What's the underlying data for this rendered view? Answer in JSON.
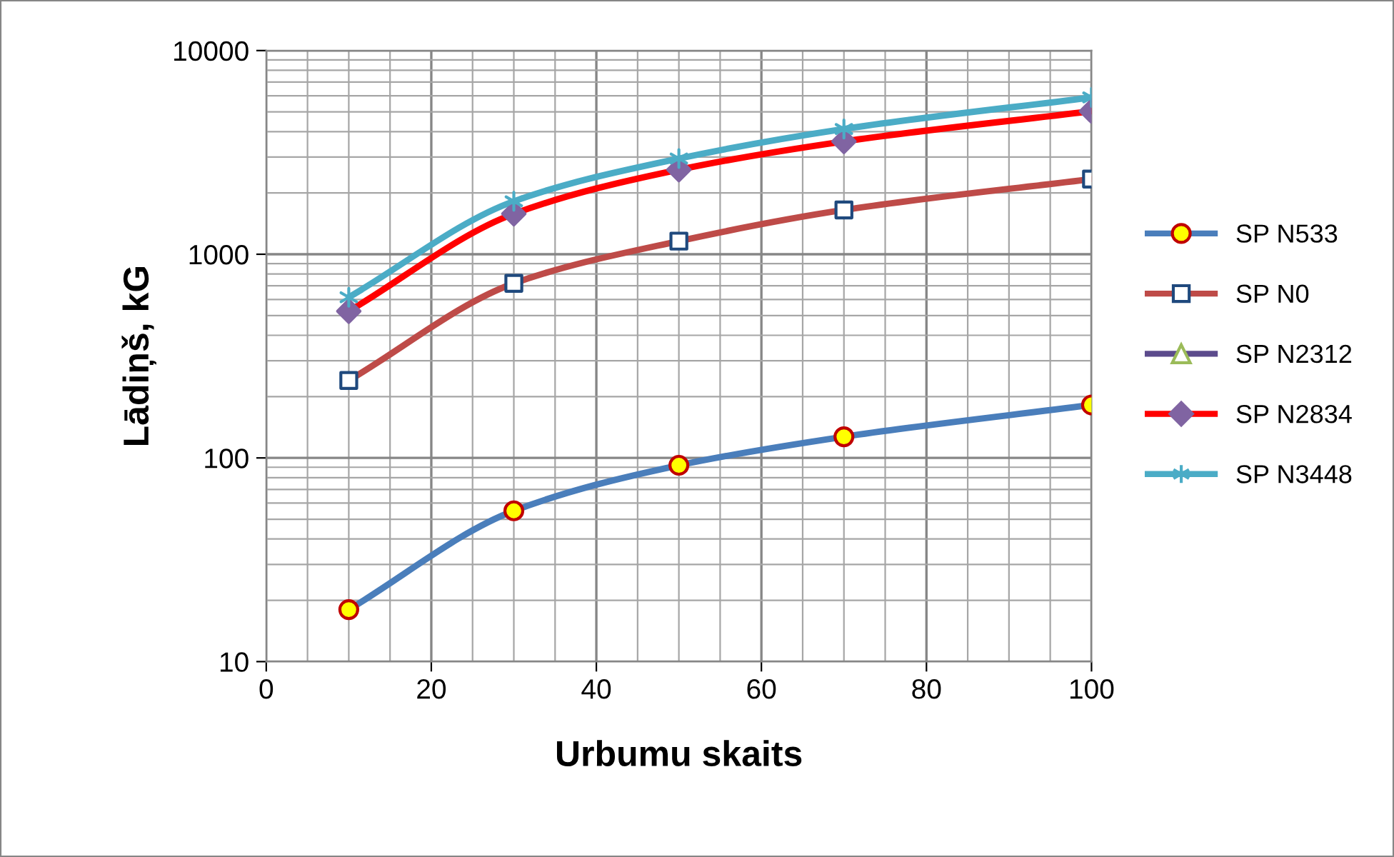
{
  "chart_data": {
    "type": "line",
    "xlabel": "Urbumu skaits",
    "ylabel": "Lādiņš, kG",
    "x": [
      10,
      30,
      50,
      70,
      100
    ],
    "series": [
      {
        "name": "SP N533",
        "color": "#4a7ebb",
        "marker": "circle",
        "values": [
          18,
          55,
          92,
          127,
          182
        ]
      },
      {
        "name": "SP N0",
        "color": "#be4b48",
        "marker": "square",
        "values": [
          240,
          720,
          1160,
          1650,
          2340
        ]
      },
      {
        "name": "SP N2312",
        "color": "#5c4b8c",
        "marker": "triangle",
        "values": [
          null,
          null,
          null,
          null,
          null
        ]
      },
      {
        "name": "SP N2834",
        "color": "#ff0000",
        "marker": "diamond",
        "values": [
          525,
          1580,
          2600,
          3580,
          5040
        ]
      },
      {
        "name": "SP N3448",
        "color": "#4bacc6",
        "marker": "cross",
        "values": [
          615,
          1820,
          2950,
          4120,
          5890
        ]
      }
    ],
    "log": "y",
    "xlim": [
      0,
      100
    ],
    "xticks": [
      0,
      20,
      40,
      60,
      80,
      100
    ],
    "ylim": [
      10,
      10000
    ],
    "yticks": [
      10,
      100,
      1000,
      10000
    ],
    "grid": true,
    "legend": "right"
  }
}
